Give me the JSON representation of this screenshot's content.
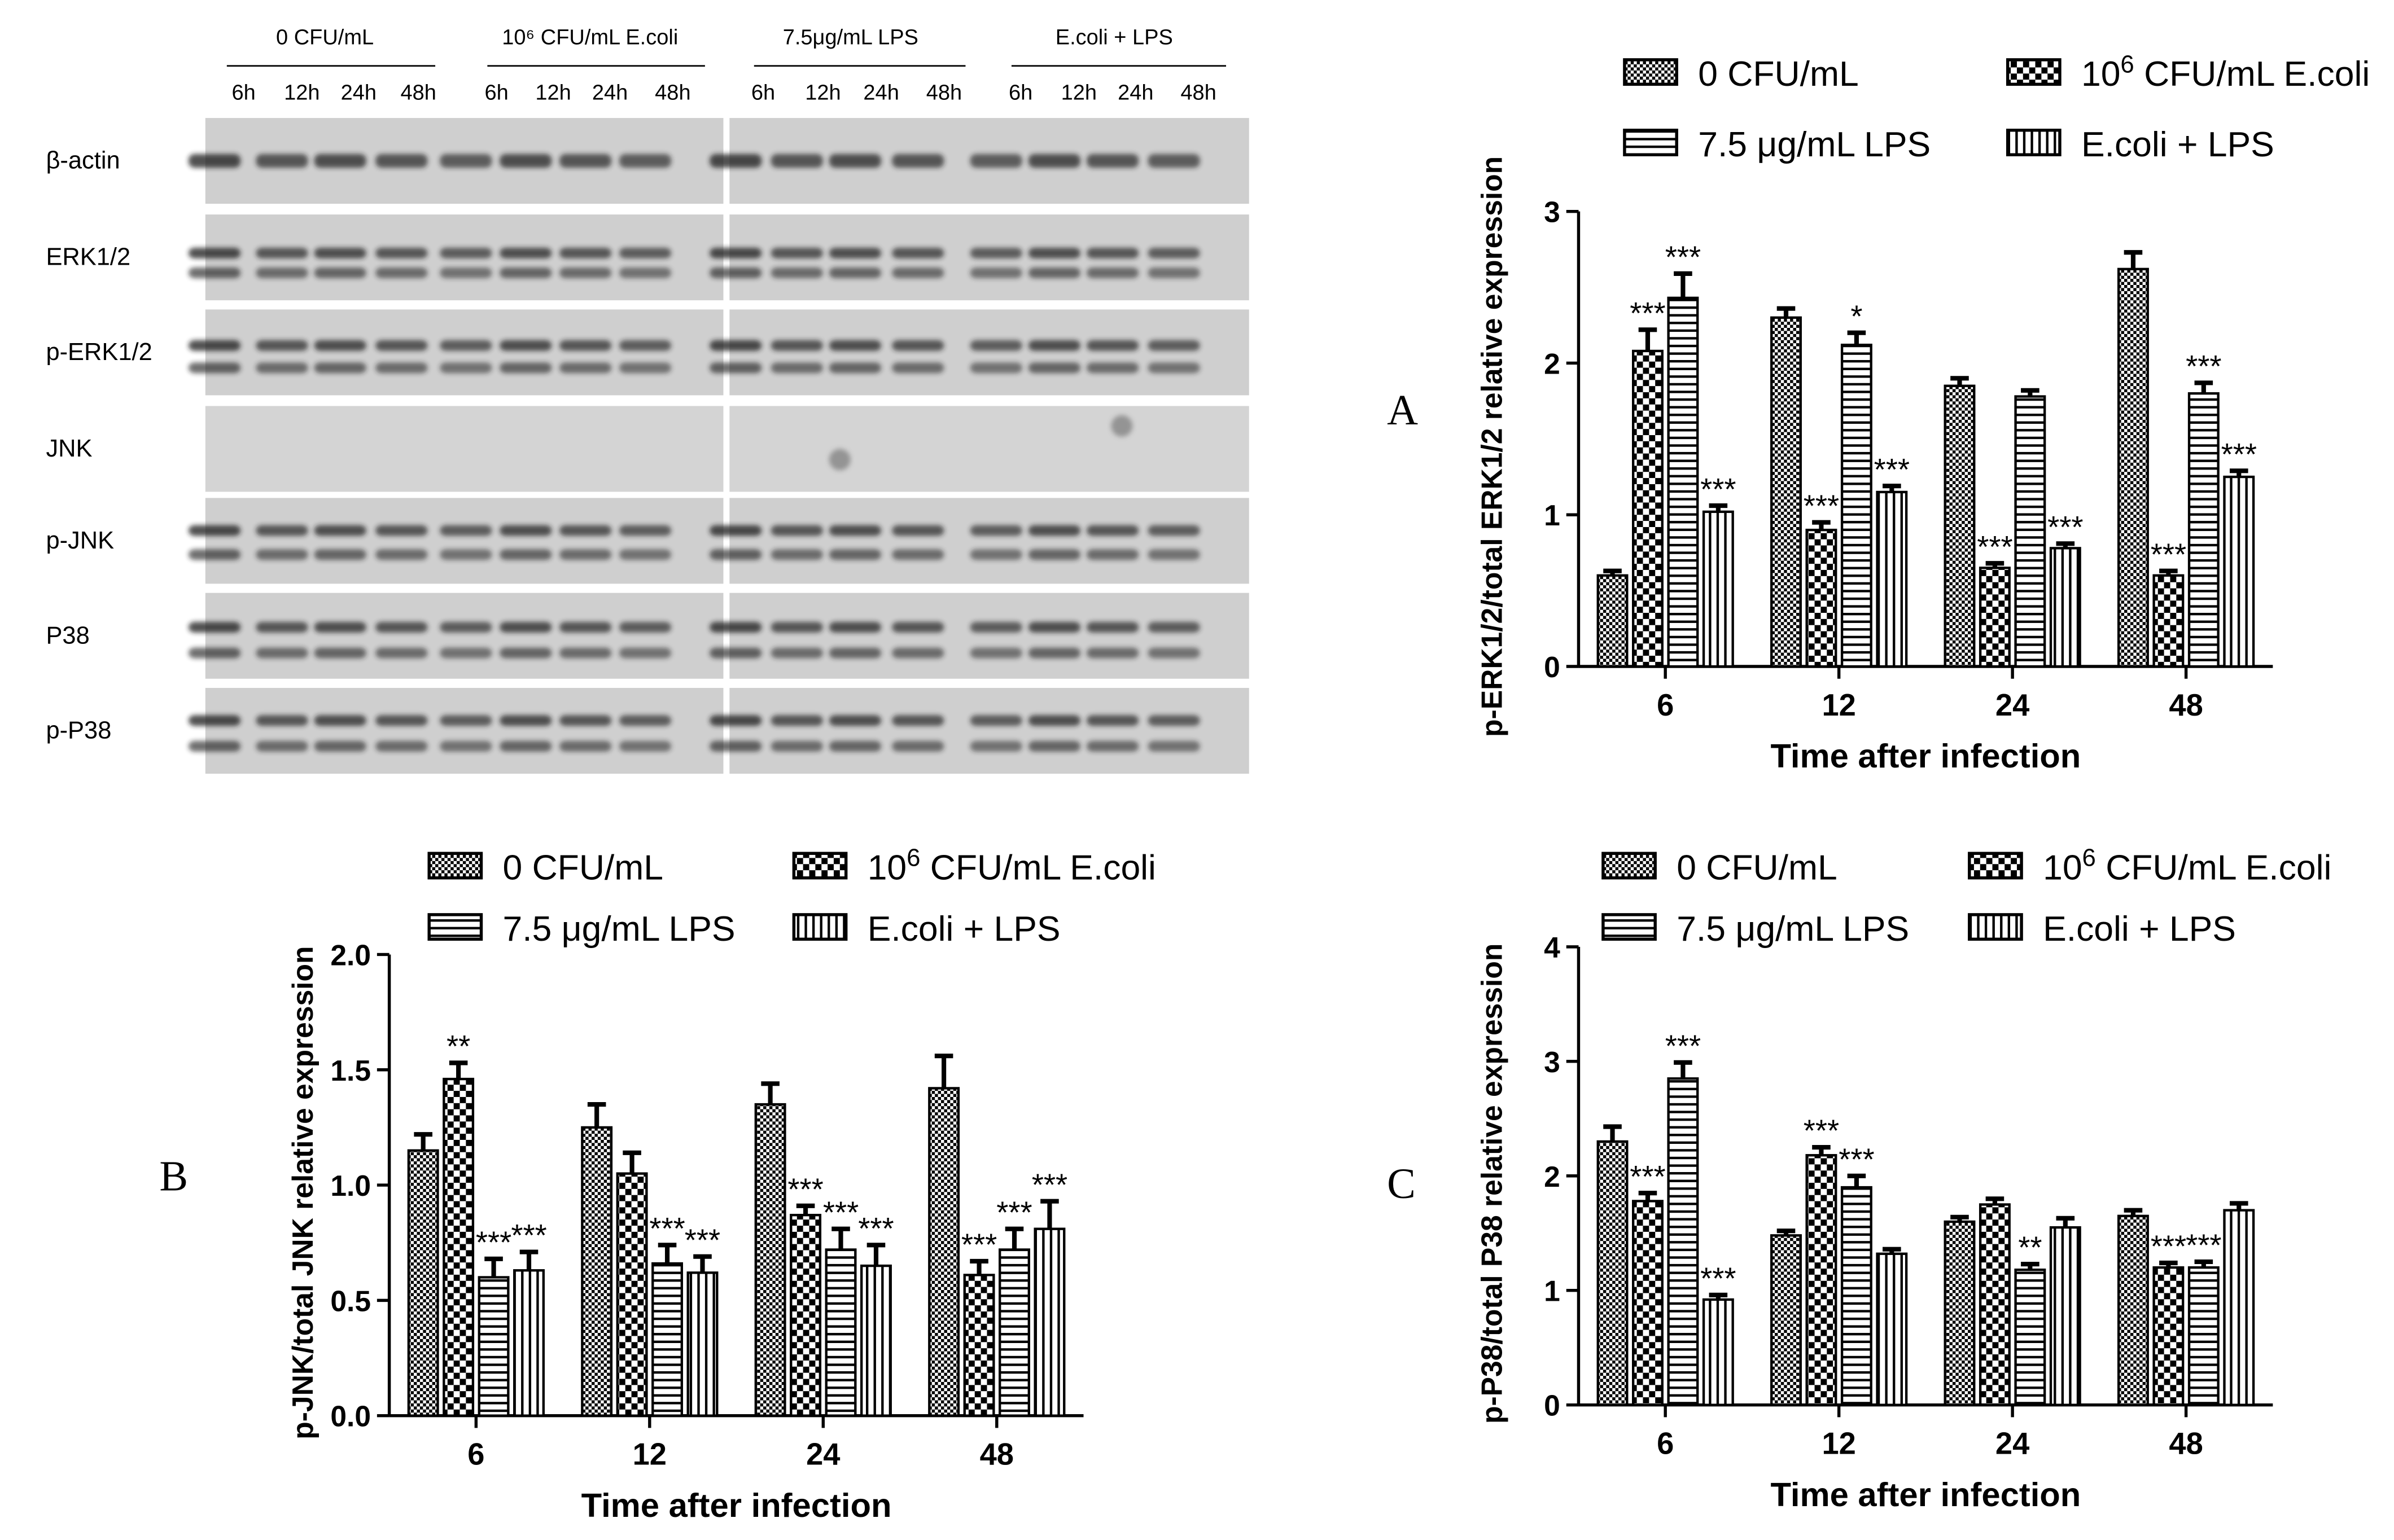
{
  "blot": {
    "groups": [
      "0 CFU/mL",
      "10⁶ CFU/mL E.coli",
      "7.5μg/mL LPS",
      "E.coli + LPS"
    ],
    "times": [
      "6h",
      "12h",
      "24h",
      "48h"
    ],
    "rows": [
      "β-actin",
      "ERK1/2",
      "p-ERK1/2",
      "JNK",
      "p-JNK",
      "P38",
      "p-P38"
    ]
  },
  "chart_data": [
    {
      "id": "A",
      "panel_label": "A",
      "type": "bar",
      "ylabel": "p-ERK1/2/total ERK1/2 relative expression",
      "xlabel": "Time after infection",
      "categories": [
        "6",
        "12",
        "24",
        "48"
      ],
      "ylim": [
        0,
        3
      ],
      "yticks": [
        "0",
        "1",
        "2",
        "3"
      ],
      "legend": [
        "0 CFU/mL",
        "10^6 CFU/mL E.coli",
        "7.5 μg/mL LPS",
        "E.coli + LPS"
      ],
      "legend_position": "top",
      "series": [
        {
          "name": "0 CFU/mL",
          "values": [
            0.6,
            2.3,
            1.85,
            2.62
          ],
          "errors": [
            0.03,
            0.06,
            0.05,
            0.11
          ],
          "sig": [
            "",
            "",
            "",
            ""
          ]
        },
        {
          "name": "10^6 CFU/mL E.coli",
          "values": [
            2.08,
            0.9,
            0.65,
            0.6
          ],
          "errors": [
            0.14,
            0.05,
            0.03,
            0.03
          ],
          "sig": [
            "***",
            "***",
            "***",
            "***"
          ]
        },
        {
          "name": "7.5 μg/mL LPS",
          "values": [
            2.43,
            2.12,
            1.78,
            1.8
          ],
          "errors": [
            0.16,
            0.08,
            0.04,
            0.07
          ],
          "sig": [
            "***",
            "*",
            "",
            "***"
          ]
        },
        {
          "name": "E.coli + LPS",
          "values": [
            1.02,
            1.15,
            0.78,
            1.25
          ],
          "errors": [
            0.04,
            0.04,
            0.03,
            0.04
          ],
          "sig": [
            "***",
            "***",
            "***",
            "***"
          ]
        }
      ]
    },
    {
      "id": "B",
      "panel_label": "B",
      "type": "bar",
      "ylabel": "p-JNK/total JNK relative expression",
      "xlabel": "Time after infection",
      "categories": [
        "6",
        "12",
        "24",
        "48"
      ],
      "ylim": [
        0,
        2
      ],
      "yticks": [
        "0.0",
        "0.5",
        "1.0",
        "1.5",
        "2.0"
      ],
      "legend": [
        "0 CFU/mL",
        "10^6 CFU/mL E.coli",
        "7.5 μg/mL LPS",
        "E.coli + LPS"
      ],
      "legend_position": "top",
      "series": [
        {
          "name": "0 CFU/mL",
          "values": [
            1.15,
            1.25,
            1.35,
            1.42
          ],
          "errors": [
            0.07,
            0.1,
            0.09,
            0.14
          ],
          "sig": [
            "",
            "",
            "",
            ""
          ]
        },
        {
          "name": "10^6 CFU/mL E.coli",
          "values": [
            1.46,
            1.05,
            0.87,
            0.61
          ],
          "errors": [
            0.07,
            0.09,
            0.04,
            0.06
          ],
          "sig": [
            "**",
            "",
            "***",
            "***"
          ]
        },
        {
          "name": "7.5 μg/mL LPS",
          "values": [
            0.6,
            0.66,
            0.72,
            0.72
          ],
          "errors": [
            0.08,
            0.08,
            0.09,
            0.09
          ],
          "sig": [
            "***",
            "***",
            "***",
            "***"
          ]
        },
        {
          "name": "E.coli + LPS",
          "values": [
            0.63,
            0.62,
            0.65,
            0.81
          ],
          "errors": [
            0.08,
            0.07,
            0.09,
            0.12
          ],
          "sig": [
            "***",
            "***",
            "***",
            "***"
          ]
        }
      ]
    },
    {
      "id": "C",
      "panel_label": "C",
      "type": "bar",
      "ylabel": "p-P38/total P38 relative expression",
      "xlabel": "Time after infection",
      "categories": [
        "6",
        "12",
        "24",
        "48"
      ],
      "ylim": [
        0,
        4
      ],
      "yticks": [
        "0",
        "1",
        "2",
        "3",
        "4"
      ],
      "legend": [
        "0 CFU/mL",
        "10^6 CFU/mL E.coli",
        "7.5 μg/mL LPS",
        "E.coli + LPS"
      ],
      "legend_position": "top",
      "series": [
        {
          "name": "0 CFU/mL",
          "values": [
            2.3,
            1.48,
            1.6,
            1.65
          ],
          "errors": [
            0.13,
            0.04,
            0.04,
            0.05
          ],
          "sig": [
            "",
            "",
            "",
            ""
          ]
        },
        {
          "name": "10^6 CFU/mL E.coli",
          "values": [
            1.78,
            2.18,
            1.75,
            1.2
          ],
          "errors": [
            0.07,
            0.07,
            0.05,
            0.04
          ],
          "sig": [
            "***",
            "***",
            "",
            "***"
          ]
        },
        {
          "name": "7.5 μg/mL LPS",
          "values": [
            2.85,
            1.9,
            1.18,
            1.2
          ],
          "errors": [
            0.14,
            0.1,
            0.05,
            0.05
          ],
          "sig": [
            "***",
            "***",
            "**",
            "***"
          ]
        },
        {
          "name": "E.coli + LPS",
          "values": [
            0.92,
            1.32,
            1.55,
            1.7
          ],
          "errors": [
            0.04,
            0.04,
            0.08,
            0.06
          ],
          "sig": [
            "***",
            "",
            "",
            ""
          ]
        }
      ]
    }
  ]
}
